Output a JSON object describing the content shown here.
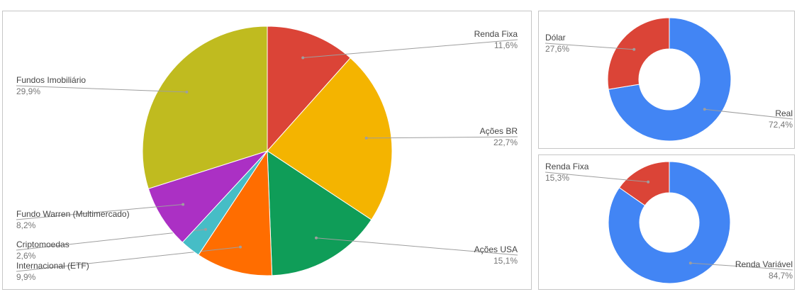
{
  "chart_data": [
    {
      "type": "pie",
      "title": "",
      "slices": [
        {
          "label": "Renda Fixa",
          "value": 11.6,
          "display": "11,6%",
          "color": "#db4437"
        },
        {
          "label": "Ações BR",
          "value": 22.7,
          "display": "22,7%",
          "color": "#f4b400"
        },
        {
          "label": "Ações USA",
          "value": 15.1,
          "display": "15,1%",
          "color": "#0f9d58"
        },
        {
          "label": "Internacional (ETF)",
          "value": 9.9,
          "display": "9,9%",
          "color": "#ff6d00"
        },
        {
          "label": "Criptomoedas",
          "value": 2.6,
          "display": "2,6%",
          "color": "#46bdc6"
        },
        {
          "label": "Fundo Warren (Multimercado)",
          "value": 8.2,
          "display": "8,2%",
          "color": "#ab30c4"
        },
        {
          "label": "Fundos Imobiliário",
          "value": 29.9,
          "display": "29,9%",
          "color": "#c0bb1f"
        }
      ]
    },
    {
      "type": "pie",
      "donut": true,
      "title": "",
      "slices": [
        {
          "label": "Real",
          "value": 72.4,
          "display": "72,4%",
          "color": "#4285f4"
        },
        {
          "label": "Dólar",
          "value": 27.6,
          "display": "27,6%",
          "color": "#db4437"
        }
      ]
    },
    {
      "type": "pie",
      "donut": true,
      "title": "",
      "slices": [
        {
          "label": "Renda Variável",
          "value": 84.7,
          "display": "84,7%",
          "color": "#4285f4"
        },
        {
          "label": "Renda Fixa",
          "value": 15.3,
          "display": "15,3%",
          "color": "#db4437"
        }
      ]
    }
  ]
}
